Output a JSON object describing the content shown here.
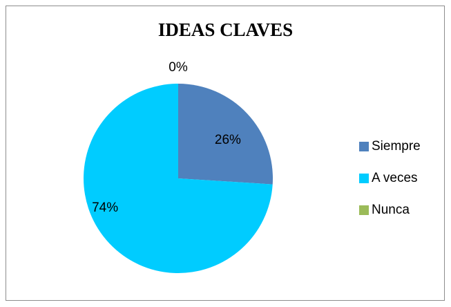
{
  "chart_data": {
    "type": "pie",
    "title": "IDEAS CLAVES",
    "categories": [
      "Siempre",
      "A veces",
      "Nunca"
    ],
    "values": [
      26,
      74,
      0
    ],
    "labels": [
      "26%",
      "74%",
      "0%"
    ],
    "colors": [
      "#4f81bd",
      "#00ccff",
      "#9bbb59"
    ],
    "legend_position": "right"
  }
}
